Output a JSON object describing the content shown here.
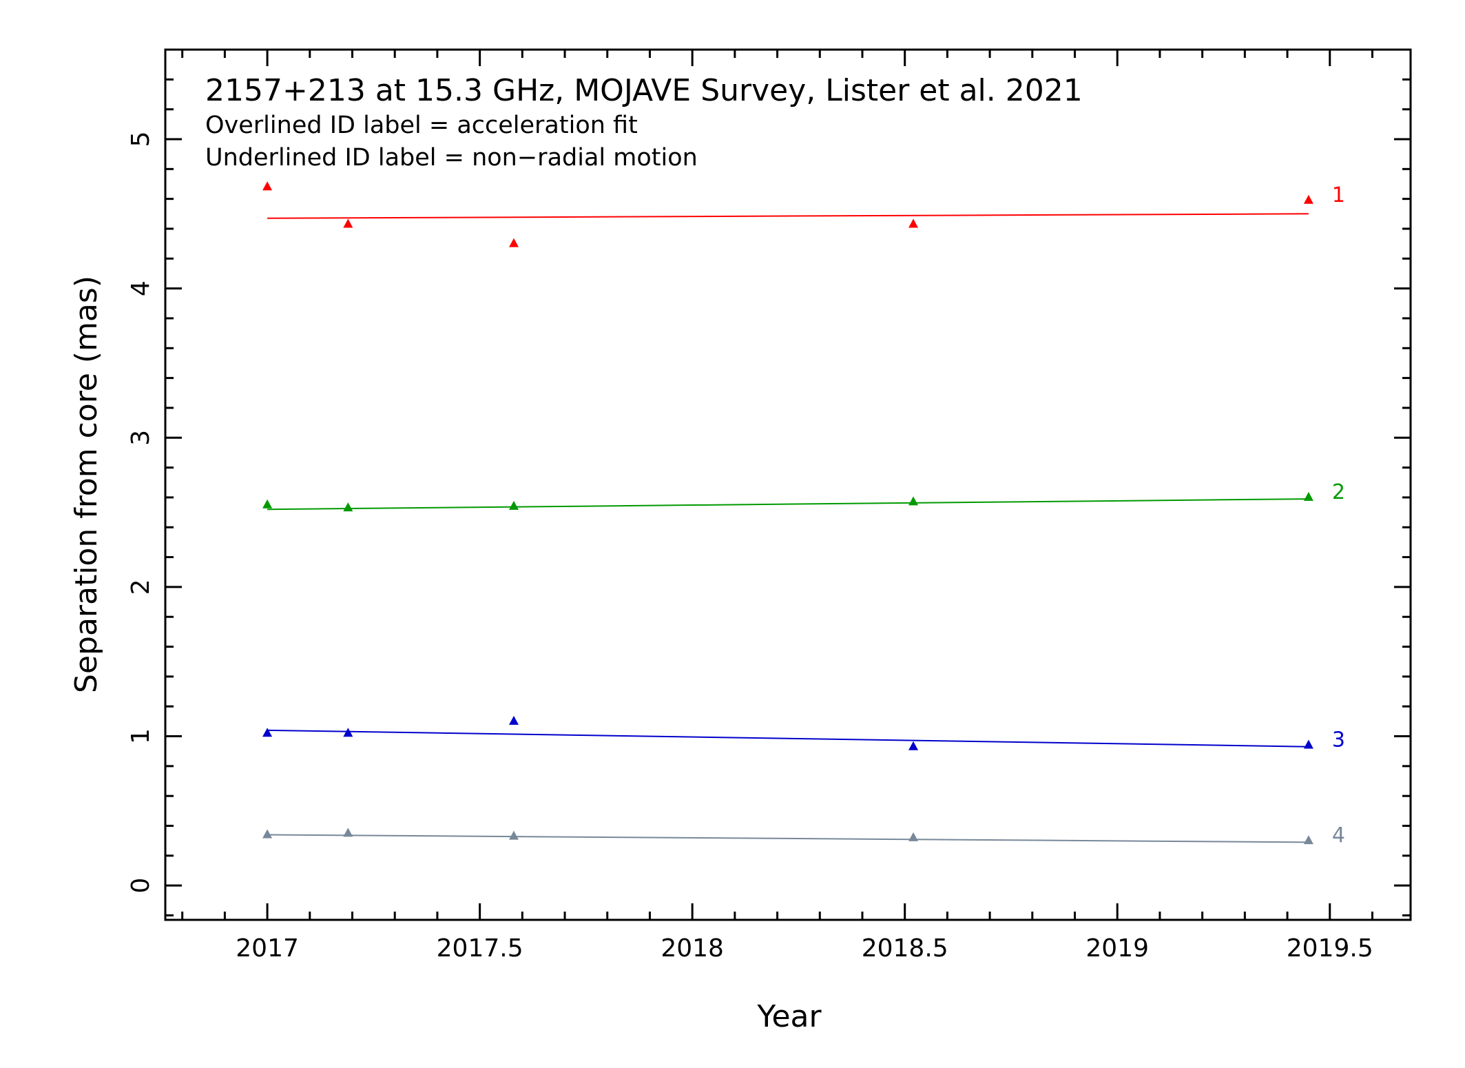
{
  "chart_data": {
    "type": "scatter",
    "title": "2157+213 at 15.3 GHz, MOJAVE Survey, Lister et al. 2021",
    "notes": [
      "Overlined ID label = acceleration fit",
      "Underlined ID label = non−radial motion"
    ],
    "xlabel": "Year",
    "ylabel": "Separation from core (mas)",
    "xlim": [
      2016.76,
      2019.69
    ],
    "ylim": [
      -0.23,
      5.6
    ],
    "x_ticks": [
      {
        "value": 2017,
        "label": "2017"
      },
      {
        "value": 2017.5,
        "label": "2017.5"
      },
      {
        "value": 2018,
        "label": "2018"
      },
      {
        "value": 2018.5,
        "label": "2018.5"
      },
      {
        "value": 2019,
        "label": "2019"
      },
      {
        "value": 2019.5,
        "label": "2019.5"
      }
    ],
    "y_ticks": [
      {
        "value": 0,
        "label": "0"
      },
      {
        "value": 1,
        "label": "1"
      },
      {
        "value": 2,
        "label": "2"
      },
      {
        "value": 3,
        "label": "3"
      },
      {
        "value": 4,
        "label": "4"
      },
      {
        "value": 5,
        "label": "5"
      }
    ],
    "grid": false,
    "series": [
      {
        "name": "1",
        "color": "#ff0000",
        "x": [
          2017.0,
          2017.19,
          2017.58,
          2018.52,
          2019.45
        ],
        "y": [
          4.68,
          4.43,
          4.3,
          4.43,
          4.59
        ],
        "fit": {
          "x": [
            2017.0,
            2019.45
          ],
          "y": [
            4.47,
            4.5
          ]
        }
      },
      {
        "name": "2",
        "color": "#009a00",
        "x": [
          2017.0,
          2017.19,
          2017.58,
          2018.52,
          2019.45
        ],
        "y": [
          2.55,
          2.53,
          2.54,
          2.57,
          2.6
        ],
        "fit": {
          "x": [
            2017.0,
            2019.45
          ],
          "y": [
            2.52,
            2.59
          ]
        }
      },
      {
        "name": "3",
        "color": "#0000cc",
        "x": [
          2017.0,
          2017.19,
          2017.58,
          2018.52,
          2019.45
        ],
        "y": [
          1.02,
          1.02,
          1.1,
          0.93,
          0.94
        ],
        "fit": {
          "x": [
            2017.0,
            2019.45
          ],
          "y": [
            1.04,
            0.93
          ]
        }
      },
      {
        "name": "4",
        "color": "#778899",
        "x": [
          2017.0,
          2017.19,
          2017.58,
          2018.52,
          2019.45
        ],
        "y": [
          0.34,
          0.35,
          0.33,
          0.32,
          0.3
        ],
        "fit": {
          "x": [
            2017.0,
            2019.45
          ],
          "y": [
            0.34,
            0.29
          ]
        }
      }
    ]
  }
}
